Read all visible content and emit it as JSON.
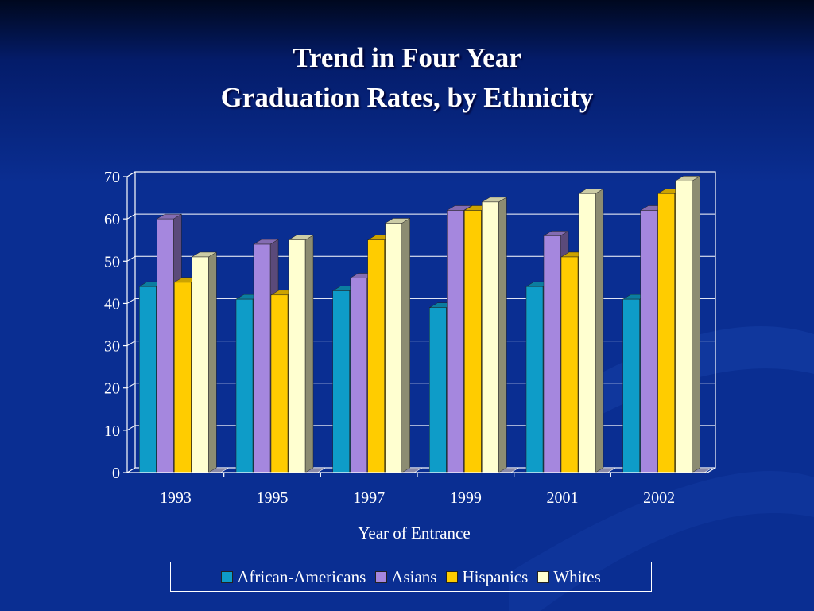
{
  "slide": {
    "title_line1": "Trend in Four Year",
    "title_line2": "Graduation Rates, by Ethnicity",
    "background_color": "#0a2a8a"
  },
  "chart_data": {
    "type": "bar",
    "title": "Trend in Four Year Graduation Rates, by Ethnicity",
    "xlabel": "Year of Entrance",
    "ylabel": "",
    "ylim": [
      0,
      70
    ],
    "yticks": [
      0,
      10,
      20,
      30,
      40,
      50,
      60,
      70
    ],
    "grid": true,
    "legend_position": "bottom",
    "style": "3d",
    "categories": [
      "1993",
      "1995",
      "1997",
      "1999",
      "2001",
      "2002"
    ],
    "series": [
      {
        "name": "African-Americans",
        "color": "#0e9cc8",
        "values": [
          44,
          41,
          43,
          39,
          44,
          41
        ]
      },
      {
        "name": "Asians",
        "color": "#a587de",
        "values": [
          60,
          54,
          46,
          62,
          56,
          62
        ]
      },
      {
        "name": "Hispanics",
        "color": "#ffcc00",
        "values": [
          45,
          42,
          55,
          62,
          51,
          66
        ]
      },
      {
        "name": "Whites",
        "color": "#ffffd0",
        "values": [
          51,
          55,
          59,
          64,
          66,
          69
        ]
      }
    ]
  }
}
